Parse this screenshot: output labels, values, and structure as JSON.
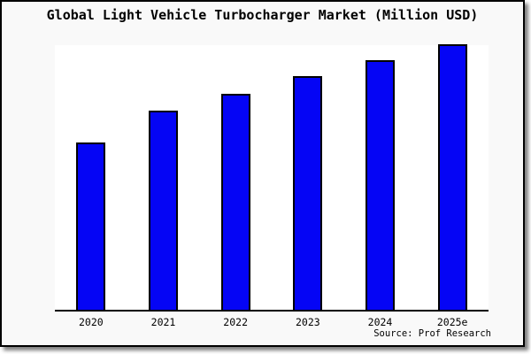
{
  "chart_data": {
    "type": "bar",
    "title": "Global Light Vehicle Turbocharger Market (Million USD)",
    "categories": [
      "2020",
      "2021",
      "2022",
      "2023",
      "2024",
      "2025e"
    ],
    "values": [
      63,
      75,
      81.5,
      88,
      94,
      100
    ],
    "value_note": "No y-axis or data labels shown; values are relative bar heights as percent of tallest bar (2025e = 100)",
    "xlabel": "",
    "ylabel": "",
    "grid": false,
    "legend": false,
    "bar_color": "#0505f5",
    "bar_border_color": "#000000",
    "source": "Source: Prof Research"
  },
  "colors": {
    "panel_background": "#f9f9f9",
    "plot_background": "#ffffff",
    "frame_border": "#000000",
    "title_text": "#000000"
  }
}
